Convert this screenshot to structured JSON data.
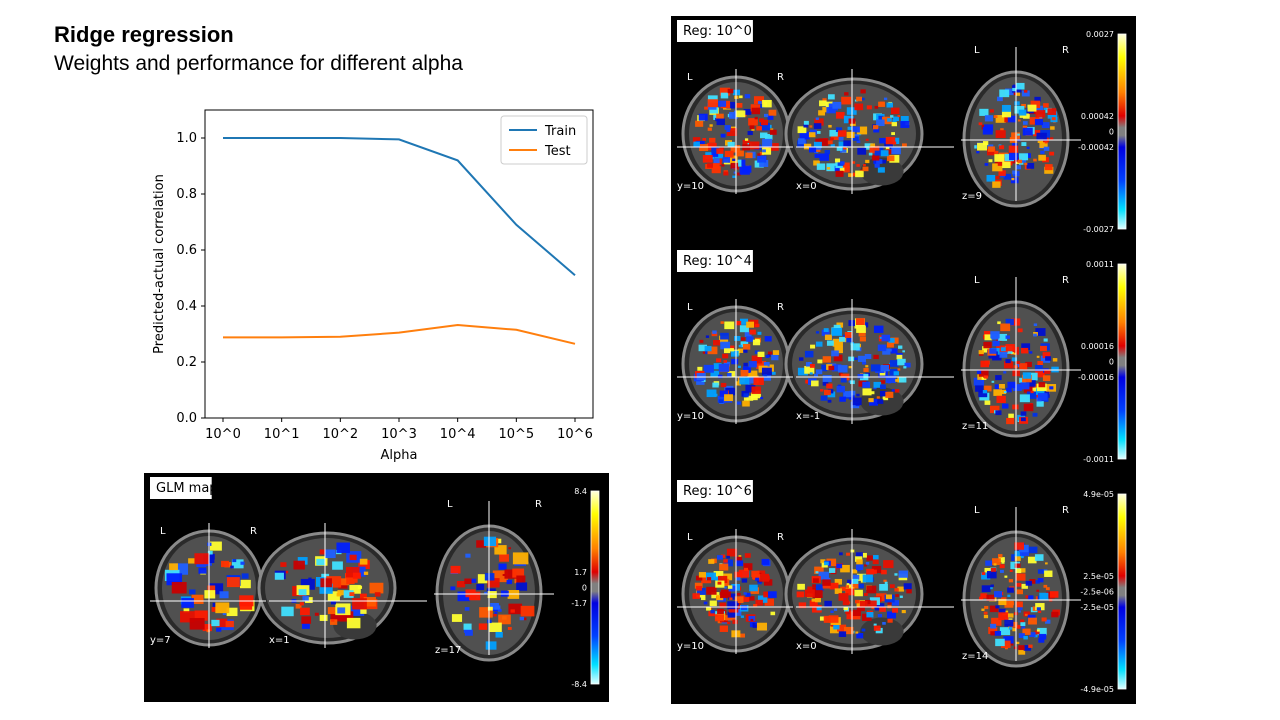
{
  "slide": {
    "title": "Ridge regression",
    "subtitle": "Weights and performance for different alpha"
  },
  "chart_data": {
    "type": "line",
    "title": "",
    "xlabel": "Alpha",
    "ylabel": "Predicted-actual correlation",
    "categories": [
      "10^0",
      "10^1",
      "10^2",
      "10^3",
      "10^4",
      "10^5",
      "10^6"
    ],
    "ylim": [
      0,
      1.1
    ],
    "yticks": [
      "0.0",
      "0.2",
      "0.4",
      "0.6",
      "0.8",
      "1.0"
    ],
    "legend_position": "top-right",
    "grid": false,
    "series": [
      {
        "name": "Train",
        "color": "#1f77b4",
        "values": [
          1.0,
          1.0,
          1.0,
          0.995,
          0.92,
          0.69,
          0.51
        ]
      },
      {
        "name": "Test",
        "color": "#ff7f0e",
        "values": [
          0.288,
          0.288,
          0.29,
          0.305,
          0.332,
          0.315,
          0.265
        ]
      }
    ]
  },
  "glm_panel": {
    "label": "GLM map",
    "colorbar": [
      "8.4",
      "1.7",
      "0",
      "-1.7",
      "-8.4"
    ],
    "views": {
      "coronal": "y=7",
      "sagittal": "x=1",
      "axial": "z=17"
    },
    "orientation": {
      "left": "L",
      "right": "R"
    }
  },
  "reg_panels": [
    {
      "label": "Reg: 10^0",
      "colorbar": [
        "0.0027",
        "0.00042",
        "0",
        "-0.00042",
        "-0.0027"
      ],
      "views": {
        "coronal": "y=10",
        "sagittal": "x=0",
        "axial": "z=9"
      }
    },
    {
      "label": "Reg: 10^4",
      "colorbar": [
        "0.0011",
        "0.00016",
        "0",
        "-0.00016",
        "-0.0011"
      ],
      "views": {
        "coronal": "y=10",
        "sagittal": "x=-1",
        "axial": "z=11"
      }
    },
    {
      "label": "Reg: 10^6",
      "colorbar": [
        "4.9e-05",
        "2.5e-05",
        "-2.5e-06",
        "-2.5e-05",
        "-4.9e-05"
      ],
      "views": {
        "coronal": "y=10",
        "sagittal": "x=0",
        "axial": "z=14"
      }
    }
  ]
}
